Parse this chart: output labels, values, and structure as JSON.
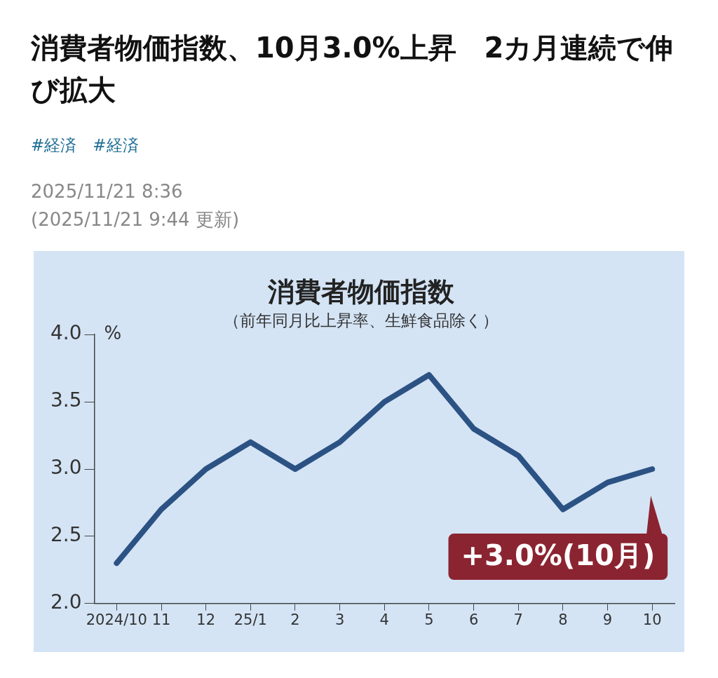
{
  "chart_data": {
    "type": "line",
    "title": "消費者物価指数",
    "subtitle": "（前年同月比上昇率、生鮮食品除く）",
    "ylabel": "%",
    "categories": [
      "2024/10",
      "11",
      "12",
      "25/1",
      "2",
      "3",
      "4",
      "5",
      "6",
      "7",
      "8",
      "9",
      "10"
    ],
    "series": [
      {
        "color": "#2b5283",
        "values": [
          2.3,
          2.7,
          3.0,
          3.2,
          3.0,
          3.2,
          3.5,
          3.7,
          3.3,
          3.1,
          2.7,
          2.9,
          3.0
        ]
      }
    ],
    "ylim": [
      2.0,
      4.0
    ],
    "yticks": [
      {
        "value": 2.0,
        "label": "2.0"
      },
      {
        "value": 2.5,
        "label": "2.5"
      },
      {
        "value": 3.0,
        "label": "3.0"
      },
      {
        "value": 3.5,
        "label": "3.5"
      },
      {
        "value": 4.0,
        "label": "4.0"
      }
    ],
    "grid": false,
    "legend": false,
    "marker": "none",
    "line_style": "solid",
    "annotations": [
      "消費者物価指数、10月3.0%上昇　2カ月連続で伸び拡大",
      "#経済　#経済",
      "2025/11/21 8:36",
      "(2025/11/21 9:44 更新)",
      {
        "text": "+3.0%(10月)",
        "x": "10",
        "y": 3.0
      }
    ]
  }
}
